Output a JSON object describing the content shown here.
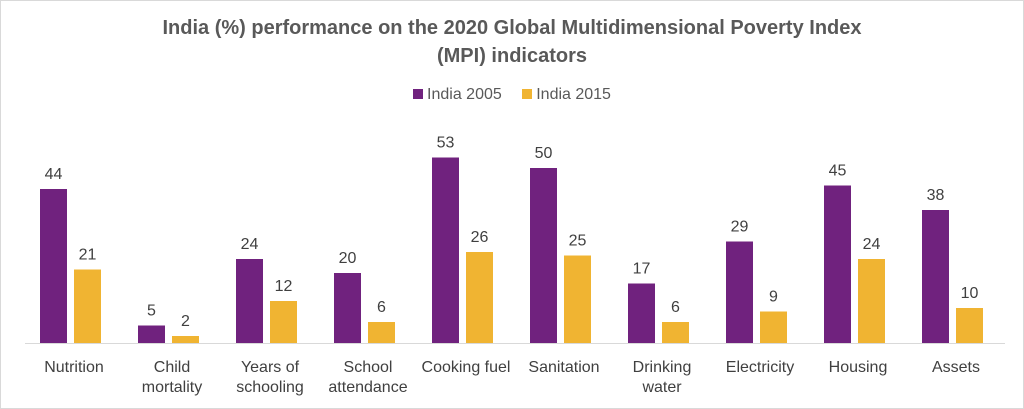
{
  "chart_data": {
    "type": "bar",
    "title_lines": [
      "India (%) performance on the 2020 Global Multidimensional Poverty Index",
      "(MPI) indicators"
    ],
    "categories": [
      [
        "Nutrition"
      ],
      [
        "Child",
        "mortality"
      ],
      [
        "Years of",
        "schooling"
      ],
      [
        "School",
        "attendance"
      ],
      [
        "Cooking fuel"
      ],
      [
        "Sanitation"
      ],
      [
        "Drinking",
        "water"
      ],
      [
        "Electricity"
      ],
      [
        "Housing"
      ],
      [
        "Assets"
      ]
    ],
    "series": [
      {
        "name": "India 2005",
        "color": "#70227e",
        "values": [
          44,
          5,
          24,
          20,
          53,
          50,
          17,
          29,
          45,
          38
        ]
      },
      {
        "name": "India 2015",
        "color": "#f0b432",
        "values": [
          21,
          2,
          12,
          6,
          26,
          25,
          6,
          9,
          24,
          10
        ]
      }
    ],
    "ylim": [
      0,
      60
    ],
    "grid": false,
    "legend_position": "top",
    "data_labels": true
  }
}
